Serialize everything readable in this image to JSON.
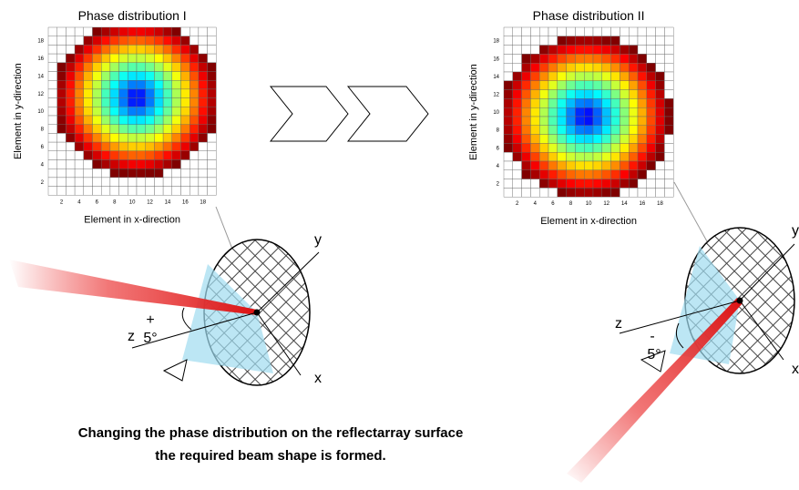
{
  "panels": [
    {
      "title": "Phase distribution I",
      "x_label": "Element in x-direction",
      "y_label": "Element in y-direction",
      "ticks": [
        2,
        4,
        6,
        8,
        10,
        12,
        14,
        16,
        18
      ],
      "axes": {
        "y": "y",
        "z": "z",
        "x": "x"
      },
      "sign": "+",
      "angle": "5°"
    },
    {
      "title": "Phase distribution II",
      "x_label": "Element in x-direction",
      "y_label": "Element in y-direction",
      "ticks": [
        2,
        4,
        6,
        8,
        10,
        12,
        14,
        16,
        18
      ],
      "axes": {
        "y": "y",
        "z": "z",
        "x": "x"
      },
      "sign": "-",
      "angle": "5°"
    }
  ],
  "caption": [
    "Changing the phase distribution on the reflectarray surface",
    "the required beam shape is formed."
  ]
}
